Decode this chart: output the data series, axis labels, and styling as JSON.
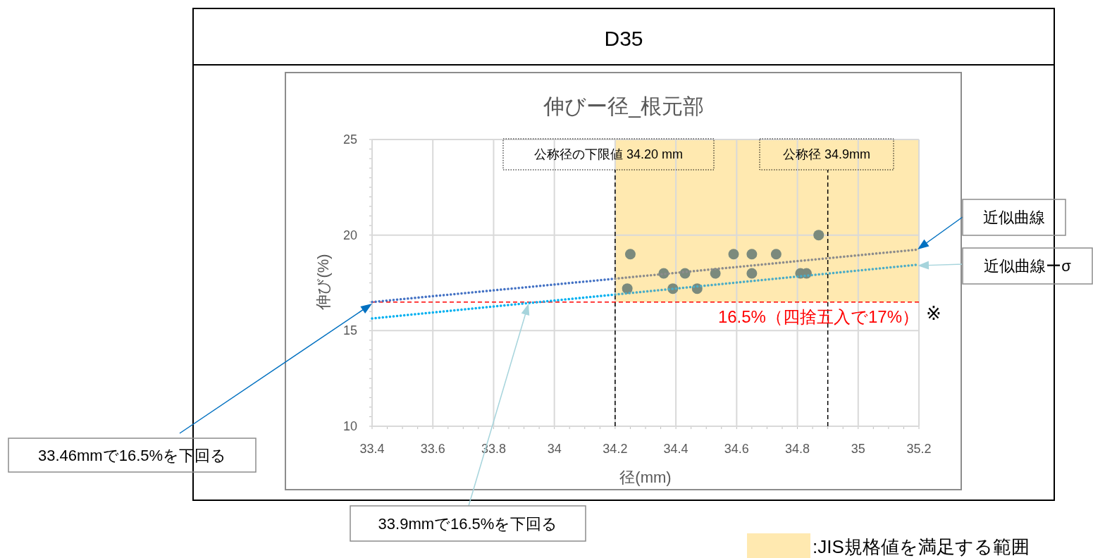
{
  "chart_data": {
    "type": "scatter",
    "title": "D35",
    "subtitle": "伸びー径_根元部",
    "xlabel": "径(mm)",
    "ylabel": "伸び(%)",
    "xlim": [
      33.4,
      35.2
    ],
    "xticks": [
      33.4,
      33.6,
      33.8,
      34,
      34.2,
      34.4,
      34.6,
      34.8,
      35,
      35.2
    ],
    "ylim": [
      10,
      25
    ],
    "yticks": [
      10,
      15,
      20,
      25
    ],
    "grid": true,
    "marker": "circle",
    "legend": "bottom right",
    "series": [
      {
        "color": "#7b8a7d",
        "x": [
          34.25,
          34.24,
          34.36,
          34.39,
          34.43,
          34.47,
          34.53,
          34.59,
          34.65,
          34.65,
          34.73,
          34.81,
          34.83,
          34.87
        ],
        "values": [
          19,
          17.2,
          18,
          17.2,
          18,
          17.2,
          18,
          19,
          19,
          18,
          19,
          18,
          18,
          20
        ]
      },
      {
        "type": "line",
        "marker": "none",
        "line_style": "dotted",
        "color": "#4472c4",
        "x": [
          33.4,
          34.2
        ],
        "values": [
          16.5,
          17.72
        ]
      },
      {
        "type": "line",
        "marker": "none",
        "line_style": "dotted",
        "color": "#8c8c8c",
        "x": [
          34.2,
          35.2
        ],
        "values": [
          17.72,
          19.25
        ]
      },
      {
        "type": "line",
        "marker": "none",
        "line_style": "dotted",
        "color": "#00b0f0",
        "x": [
          33.4,
          34.2
        ],
        "values": [
          15.64,
          16.89
        ]
      },
      {
        "type": "line",
        "marker": "none",
        "line_style": "dotted",
        "color": "#4bacc6",
        "x": [
          34.2,
          35.2
        ],
        "values": [
          16.89,
          18.46
        ]
      }
    ],
    "ref_lines": [
      {
        "axis": "x",
        "value": 34.2,
        "label": "公称径の下限値 34.20 mm",
        "color": "#000000",
        "line_style": "dashed"
      },
      {
        "axis": "x",
        "value": 34.9,
        "label": "公称径 34.9mm",
        "color": "#000000",
        "line_style": "dashed"
      },
      {
        "axis": "y",
        "value": 16.5,
        "label": "16.5%（四捨五入で17%）",
        "color": "#ff0000",
        "line_style": "dashed"
      }
    ],
    "bands": [
      {
        "axis": "x",
        "from": 34.2,
        "to": 35.2,
        "label": ":JIS規格値を満足する範囲",
        "color": "#ffe9b0"
      }
    ],
    "annotations": [
      "近似曲線",
      "近似曲線ーσ",
      "33.46mmで16.5%を下回る",
      "33.9mmで16.5%を下回る",
      "※"
    ]
  }
}
